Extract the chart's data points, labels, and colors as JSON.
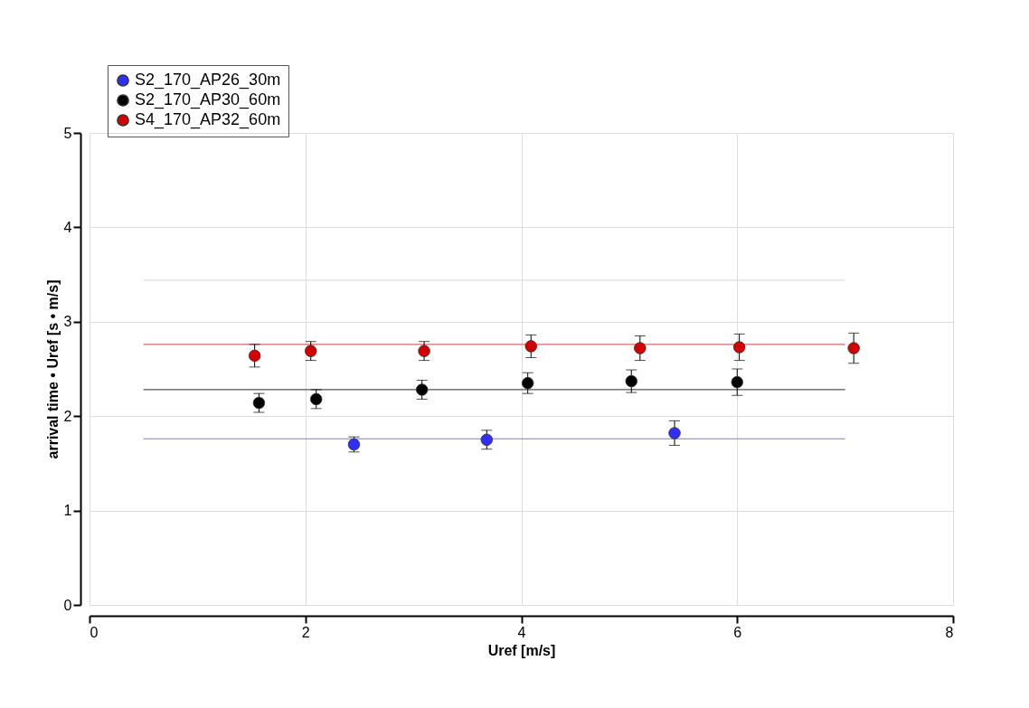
{
  "chart_data": {
    "type": "scatter",
    "xlabel": "Uref [m/s]",
    "ylabel": "arrival time • Uref [s • m/s]",
    "xlim": [
      0,
      8
    ],
    "xticks": [
      0,
      2,
      4,
      6,
      8
    ],
    "ylim": [
      0,
      5
    ],
    "yticks": [
      0,
      1,
      2,
      3,
      4,
      5
    ],
    "grid": true,
    "legend": "top left",
    "marker": "circle",
    "series": [
      {
        "type": "line",
        "marker": "none",
        "line_style": "solid",
        "color": "#dddddd",
        "x": [
          0.5,
          7
        ],
        "values": [
          3.44,
          3.44
        ]
      },
      {
        "type": "line",
        "marker": "none",
        "line_style": "solid",
        "color": "#d06a6a",
        "x": [
          0.5,
          7
        ],
        "values": [
          2.76,
          2.76
        ]
      },
      {
        "type": "line",
        "marker": "none",
        "line_style": "solid",
        "color": "#555555",
        "x": [
          0.5,
          7
        ],
        "values": [
          2.28,
          2.28
        ]
      },
      {
        "type": "line",
        "marker": "none",
        "line_style": "solid",
        "color": "#7878e0",
        "x": [
          0.5,
          7
        ],
        "values": [
          1.76,
          1.76
        ]
      },
      {
        "name": "S2_170_AP26_30m",
        "color": "#2f2ff5",
        "x": [
          2.45,
          3.68,
          5.42
        ],
        "values": [
          1.7,
          1.75,
          1.82
        ],
        "errors": [
          0.08,
          0.1,
          0.13
        ]
      },
      {
        "name": "S2_170_AP30_60m",
        "color": "#000000",
        "x": [
          1.57,
          2.1,
          3.08,
          4.06,
          5.02,
          6.0
        ],
        "values": [
          2.14,
          2.18,
          2.28,
          2.35,
          2.37,
          2.36
        ],
        "errors": [
          0.1,
          0.1,
          0.1,
          0.11,
          0.12,
          0.14
        ]
      },
      {
        "name": "S4_170_AP32_60m",
        "color": "#d40000",
        "x": [
          1.53,
          2.05,
          3.1,
          4.09,
          5.1,
          6.02,
          7.08
        ],
        "values": [
          2.64,
          2.69,
          2.69,
          2.74,
          2.72,
          2.73,
          2.72
        ],
        "errors": [
          0.12,
          0.1,
          0.1,
          0.12,
          0.13,
          0.14,
          0.16
        ]
      }
    ]
  }
}
